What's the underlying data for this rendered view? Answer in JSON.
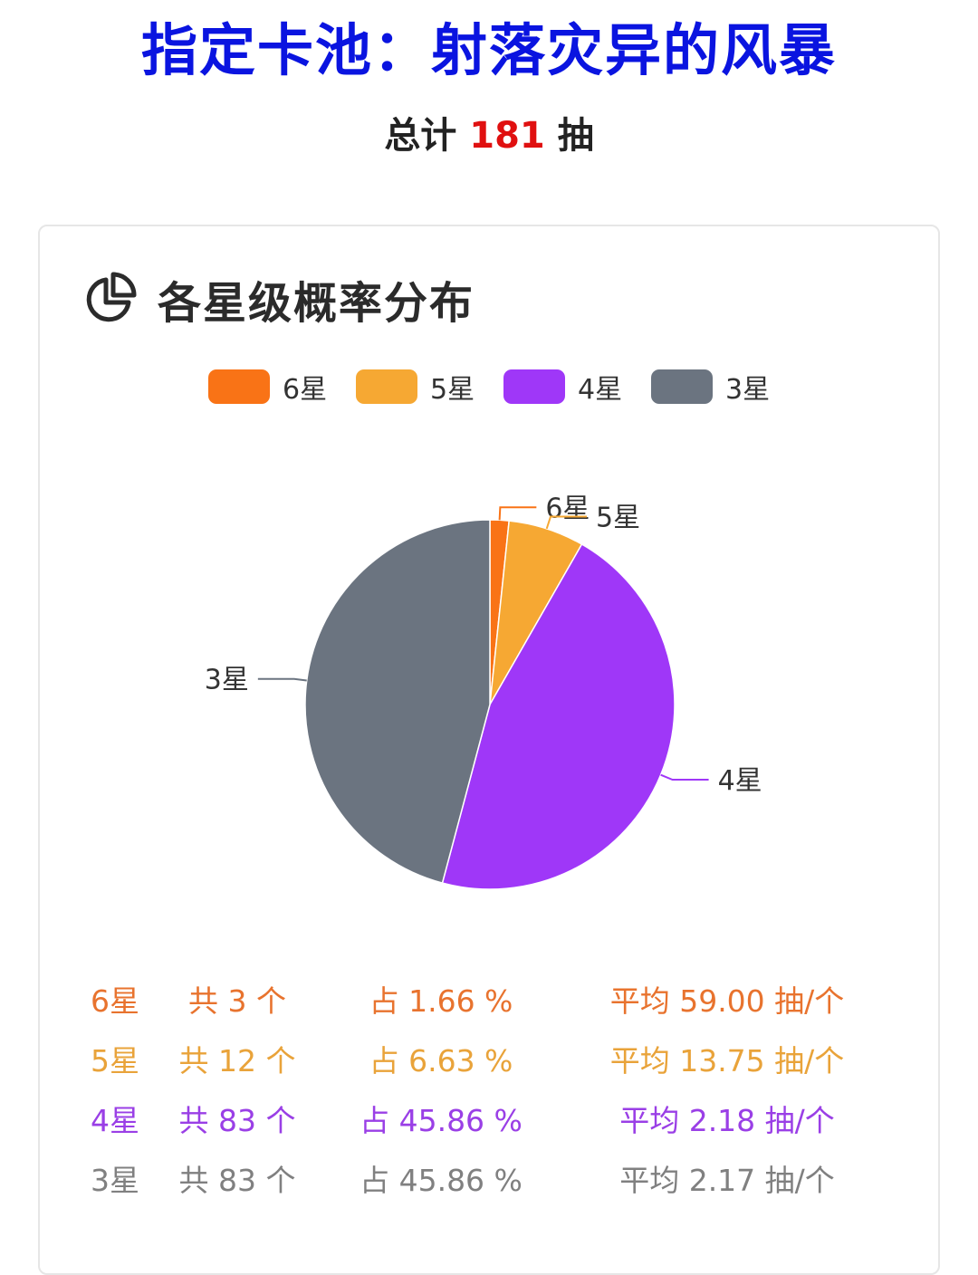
{
  "header": {
    "title": "指定卡池：射落灾异的风暴",
    "total_prefix": "总计",
    "total_value": "181",
    "total_suffix": "抽"
  },
  "card": {
    "title": "各星级概率分布",
    "icon": "pie-chart-icon"
  },
  "colors": {
    "star6": "#f97316",
    "star5": "#f6a833",
    "star4": "#9f37f8",
    "star3": "#6b7480"
  },
  "chart_data": {
    "type": "pie",
    "categories": [
      "6星",
      "5星",
      "4星",
      "3星"
    ],
    "values": [
      3,
      12,
      83,
      83
    ],
    "legend_position": "top",
    "colors": [
      "#f97316",
      "#f6a833",
      "#9f37f8",
      "#6b7480"
    ]
  },
  "stats": [
    {
      "star": "6星",
      "count": "共 3 个",
      "percent": "占 1.66 %",
      "average": "平均 59.00 抽/个",
      "color": "#e8732e"
    },
    {
      "star": "5星",
      "count": "共 12 个",
      "percent": "占 6.63 %",
      "average": "平均 13.75 抽/个",
      "color": "#e9a33a"
    },
    {
      "star": "4星",
      "count": "共 83 个",
      "percent": "占 45.86 %",
      "average": "平均 2.18 抽/个",
      "color": "#9a3fe6"
    },
    {
      "star": "3星",
      "count": "共 83 个",
      "percent": "占 45.86 %",
      "average": "平均 2.17 抽/个",
      "color": "#808080"
    }
  ]
}
